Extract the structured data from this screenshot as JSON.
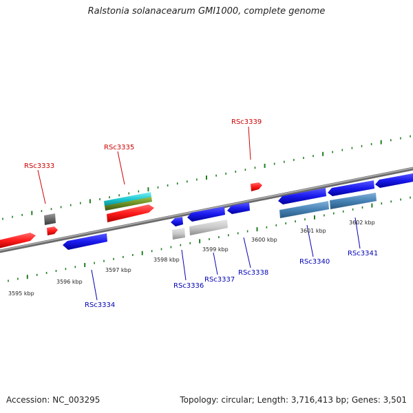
{
  "title": "Ralstonia solanacearum GMI1000, complete genome",
  "footer": {
    "accession": "Accession: NC_003295",
    "topology": "Topology: circular; Length: 3,716,413 bp; Genes: 3,501"
  },
  "colors": {
    "forward_gene": "#ff1a1a",
    "reverse_gene": "#1a1aee",
    "steelblue_gene": "#4682b4",
    "pseudo_gene": "#c8c8c8",
    "dark_gene": "#686868",
    "cyan_gene": "#1ec8d0",
    "olive_gene": "#6b8e23",
    "backbone": "#8a8a8a",
    "tick_marks": "#1e7d1e",
    "label_red": "#cc0000",
    "label_blue": "#0000b4"
  },
  "scale_labels": [
    "3595 kbp",
    "3596 kbp",
    "3597 kbp",
    "3598 kbp",
    "3599 kbp",
    "3600 kbp",
    "3601 kbp",
    "3602 kbp"
  ],
  "gene_labels": {
    "forward": [
      "RSc3333",
      "RSc3335",
      "RSc3339"
    ],
    "reverse": [
      "RSc3334",
      "RSc3336",
      "RSc3337",
      "RSc3338",
      "RSc3340",
      "RSc3341"
    ]
  }
}
